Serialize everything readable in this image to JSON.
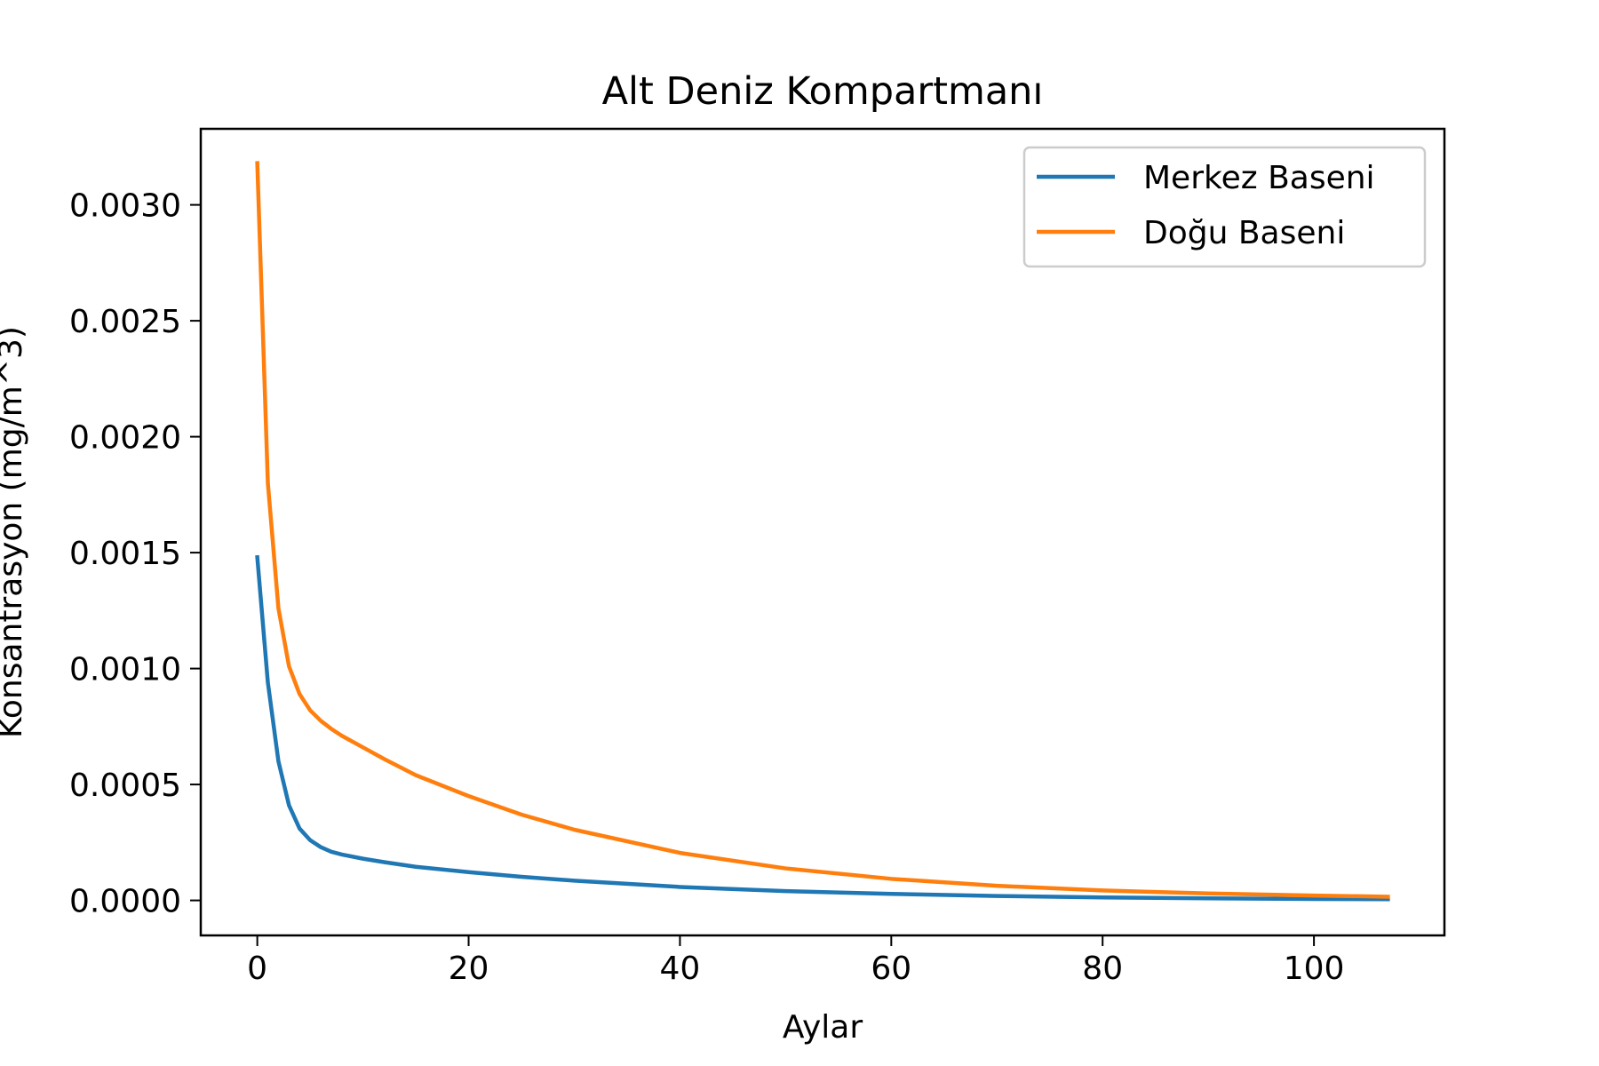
{
  "chart_data": {
    "type": "line",
    "title": "Alt Deniz Kompartmanı",
    "xlabel": "Aylar",
    "ylabel": "Konsantrasyon (mg/m^3)",
    "xlim": [
      -5.35,
      112.35
    ],
    "ylim": [
      -0.000151,
      0.003328
    ],
    "x_ticks": [
      0,
      20,
      40,
      60,
      80,
      100
    ],
    "x_tick_labels": [
      "0",
      "20",
      "40",
      "60",
      "80",
      "100"
    ],
    "y_ticks": [
      0.0,
      0.0005,
      0.001,
      0.0015,
      0.002,
      0.0025,
      0.003
    ],
    "y_tick_labels": [
      "0.0000",
      "0.0005",
      "0.0010",
      "0.0015",
      "0.0020",
      "0.0025",
      "0.0030"
    ],
    "grid": false,
    "legend_position": "upper right",
    "series": [
      {
        "name": "Merkez Baseni",
        "color": "#1f77b4",
        "x": [
          0,
          1,
          2,
          3,
          4,
          5,
          6,
          7,
          8,
          10,
          12,
          15,
          20,
          25,
          30,
          40,
          50,
          60,
          70,
          80,
          90,
          100,
          107
        ],
        "y": [
          0.00148,
          0.00094,
          0.0006,
          0.00041,
          0.00031,
          0.00026,
          0.00023,
          0.00021,
          0.000198,
          0.00018,
          0.000165,
          0.000145,
          0.000122,
          0.000102,
          8.5e-05,
          5.8e-05,
          4e-05,
          2.8e-05,
          1.9e-05,
          1.3e-05,
          9e-06,
          6e-06,
          5e-06
        ]
      },
      {
        "name": "Doğu Baseni",
        "color": "#ff7f0e",
        "x": [
          0,
          1,
          2,
          3,
          4,
          5,
          6,
          7,
          8,
          10,
          12,
          15,
          20,
          25,
          30,
          40,
          50,
          60,
          70,
          80,
          90,
          100,
          107
        ],
        "y": [
          0.00318,
          0.0018,
          0.00126,
          0.00101,
          0.00089,
          0.00082,
          0.000775,
          0.00074,
          0.00071,
          0.00066,
          0.00061,
          0.00054,
          0.00045,
          0.00037,
          0.000305,
          0.000205,
          0.000138,
          9.3e-05,
          6.3e-05,
          4.3e-05,
          3e-05,
          2.1e-05,
          1.6e-05
        ]
      }
    ]
  }
}
